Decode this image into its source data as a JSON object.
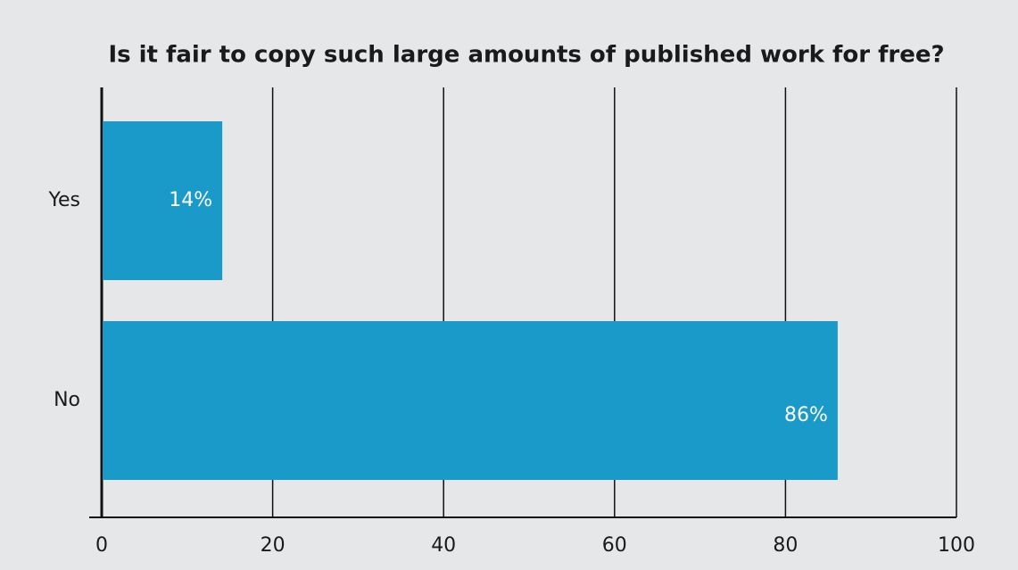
{
  "chart_data": {
    "type": "hbar",
    "title": "Is it fair to copy such large amounts of published work for free?",
    "categories": [
      "Yes",
      "No"
    ],
    "values": [
      14,
      86
    ],
    "value_labels": [
      "14%",
      "86%"
    ],
    "color": "#1a9ac9",
    "xlim": [
      0,
      100
    ],
    "xticks": [
      0,
      20,
      40,
      60,
      80,
      100
    ],
    "grid": true
  }
}
